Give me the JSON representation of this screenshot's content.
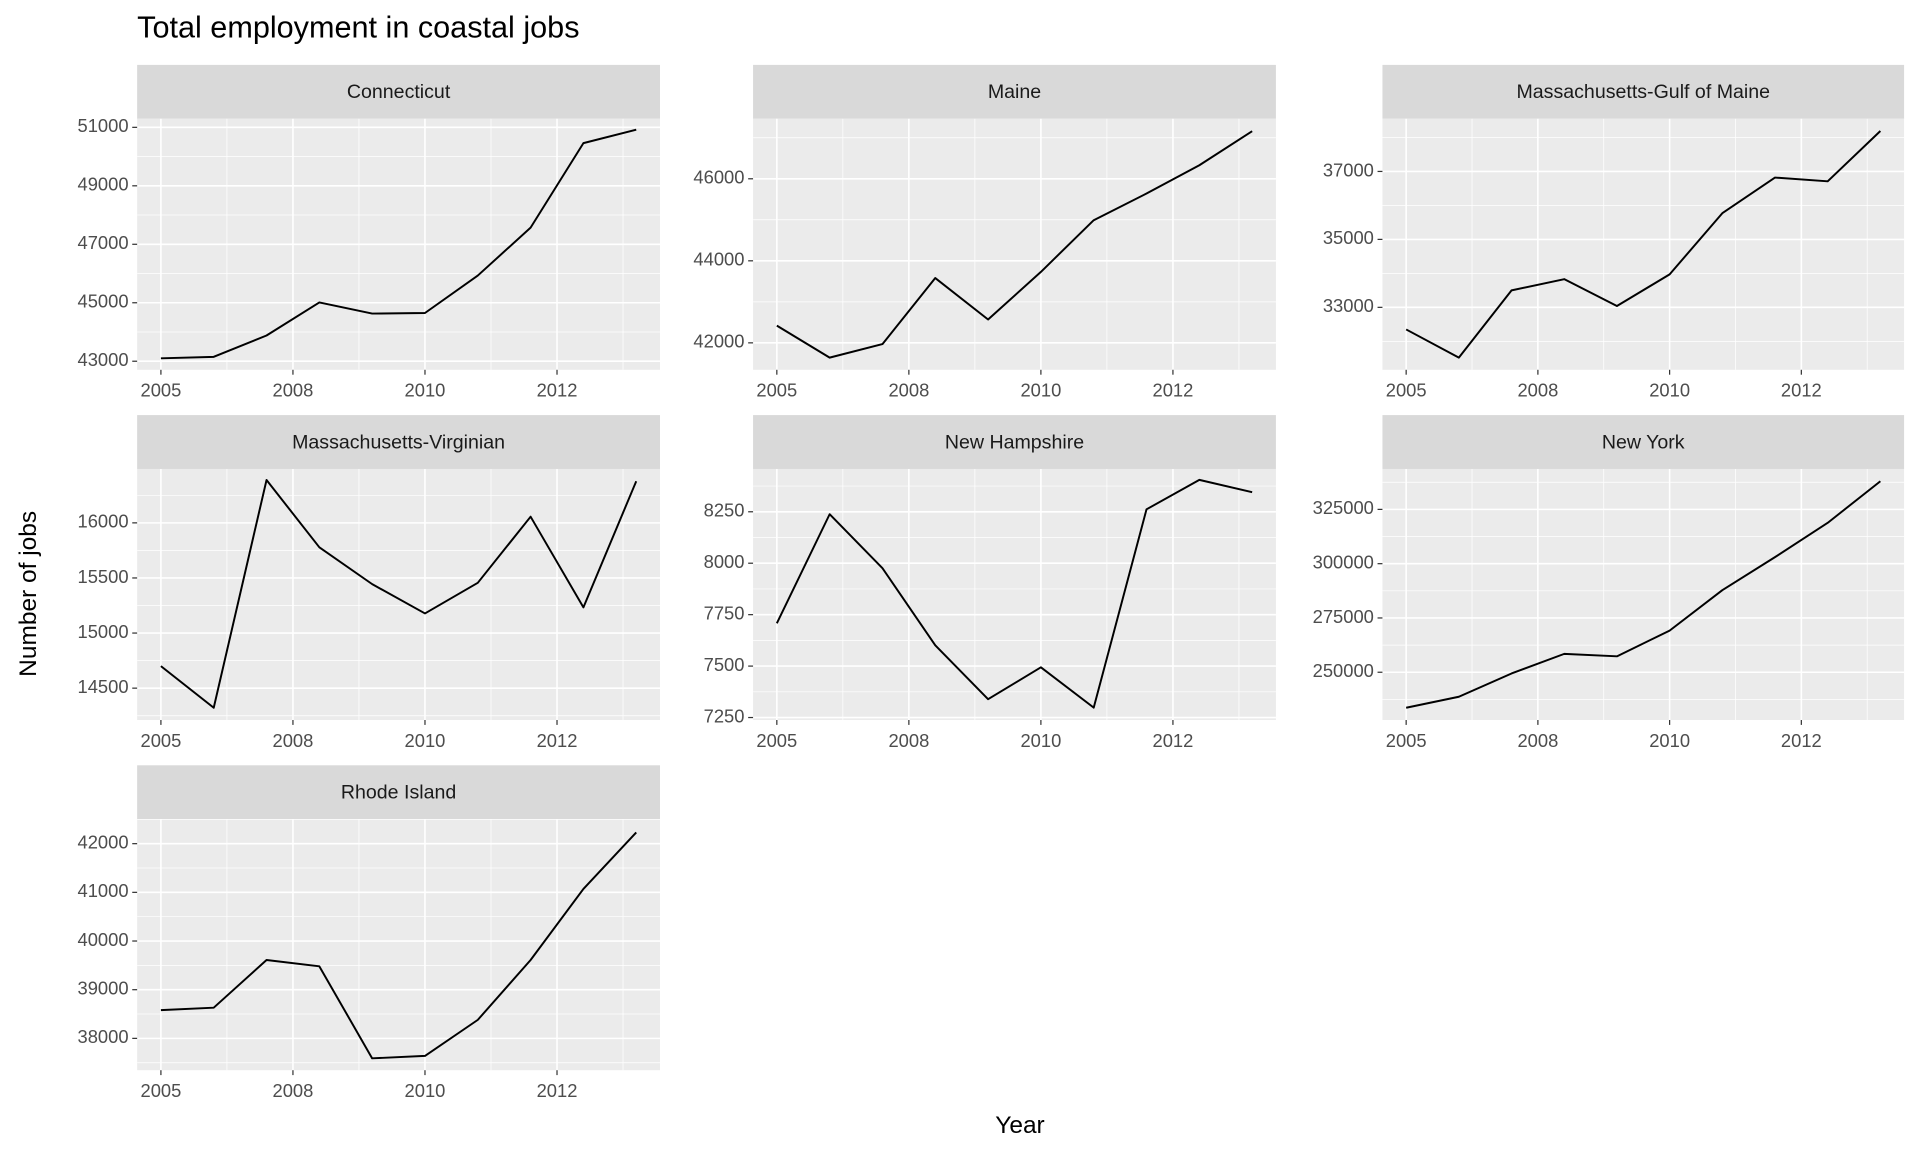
{
  "title": "Total employment in coastal jobs",
  "x_label": "Year",
  "y_label": "Number of jobs",
  "chart_data": [
    {
      "type": "line",
      "title": "Connecticut",
      "color": "#000000",
      "grid": true,
      "x": [
        2005,
        2006,
        2007,
        2008,
        2009,
        2010,
        2011,
        2012,
        2013,
        2014
      ],
      "xlim": [
        2004.55,
        2014.45
      ],
      "xticks": [
        2005,
        {
          "value": 2007.5,
          "label": "2008"
        },
        2010,
        {
          "value": 2012.5,
          "label": "2012"
        }
      ],
      "values": [
        43100,
        43150,
        43880,
        45010,
        44630,
        44650,
        45930,
        47570,
        50460,
        50920
      ],
      "ylim": [
        42707,
        51293
      ],
      "yticks": [
        43000,
        45000,
        47000,
        49000,
        51000
      ]
    },
    {
      "type": "line",
      "title": "Maine",
      "color": "#000000",
      "grid": true,
      "x": [
        2005,
        2006,
        2007,
        2008,
        2009,
        2010,
        2011,
        2012,
        2013,
        2014
      ],
      "xlim": [
        2004.55,
        2014.45
      ],
      "xticks": [
        2005,
        {
          "value": 2007.5,
          "label": "2008"
        },
        2010,
        {
          "value": 2012.5,
          "label": "2012"
        }
      ],
      "values": [
        42420,
        41640,
        41970,
        43580,
        42570,
        43730,
        44990,
        45640,
        46330,
        47160
      ],
      "ylim": [
        41343,
        47463
      ],
      "yticks": [
        42000,
        44000,
        46000
      ]
    },
    {
      "type": "line",
      "title": "Massachusetts-Gulf of Maine",
      "color": "#000000",
      "grid": true,
      "x": [
        2005,
        2006,
        2007,
        2008,
        2009,
        2010,
        2011,
        2012,
        2013,
        2014
      ],
      "xlim": [
        2004.55,
        2014.45
      ],
      "xticks": [
        2005,
        {
          "value": 2007.5,
          "label": "2008"
        },
        2010,
        {
          "value": 2012.5,
          "label": "2012"
        }
      ],
      "values": [
        32350,
        31520,
        33500,
        33830,
        33040,
        33970,
        35770,
        36820,
        36710,
        38190
      ],
      "ylim": [
        31162,
        38550
      ],
      "yticks": [
        33000,
        35000,
        37000
      ]
    },
    {
      "type": "line",
      "title": "Massachusetts-Virginian",
      "color": "#000000",
      "grid": true,
      "x": [
        2005,
        2006,
        2007,
        2008,
        2009,
        2010,
        2011,
        2012,
        2013,
        2014
      ],
      "xlim": [
        2004.55,
        2014.45
      ],
      "xticks": [
        2005,
        {
          "value": 2007.5,
          "label": "2008"
        },
        2010,
        {
          "value": 2012.5,
          "label": "2012"
        }
      ],
      "values": [
        14700,
        14322,
        16389,
        15778,
        15444,
        15178,
        15456,
        16056,
        15233,
        16378
      ],
      "ylim": [
        14211,
        16489
      ],
      "yticks": [
        14500,
        15000,
        15500,
        16000
      ]
    },
    {
      "type": "line",
      "title": "New Hampshire",
      "color": "#000000",
      "grid": true,
      "x": [
        2005,
        2006,
        2007,
        2008,
        2009,
        2010,
        2011,
        2012,
        2013,
        2014
      ],
      "xlim": [
        2004.55,
        2014.45
      ],
      "xticks": [
        2005,
        {
          "value": 2007.5,
          "label": "2008"
        },
        2010,
        {
          "value": 2012.5,
          "label": "2012"
        }
      ],
      "values": [
        7708,
        8238,
        7976,
        7601,
        7339,
        7494,
        7298,
        8262,
        8405,
        8345
      ],
      "ylim": [
        7238,
        8458
      ],
      "yticks": [
        7250,
        7500,
        7750,
        8000,
        8250
      ]
    },
    {
      "type": "line",
      "title": "New York",
      "color": "#000000",
      "grid": true,
      "x": [
        2005,
        2006,
        2007,
        2008,
        2009,
        2010,
        2011,
        2012,
        2013,
        2014
      ],
      "xlim": [
        2004.55,
        2014.45
      ],
      "xticks": [
        2005,
        {
          "value": 2007.5,
          "label": "2008"
        },
        2010,
        {
          "value": 2012.5,
          "label": "2012"
        }
      ],
      "values": [
        233640,
        238720,
        249440,
        258460,
        257330,
        269170,
        287780,
        303010,
        318800,
        337970
      ],
      "ylim": [
        228007,
        343610
      ],
      "yticks": [
        250000,
        275000,
        300000,
        325000
      ]
    },
    {
      "type": "line",
      "title": "Rhode Island",
      "color": "#000000",
      "grid": true,
      "x": [
        2005,
        2006,
        2007,
        2008,
        2009,
        2010,
        2011,
        2012,
        2013,
        2014
      ],
      "xlim": [
        2004.55,
        2014.45
      ],
      "xticks": [
        2005,
        {
          "value": 2007.5,
          "label": "2008"
        },
        2010,
        {
          "value": 2012.5,
          "label": "2012"
        }
      ],
      "values": [
        38580,
        38630,
        39610,
        39480,
        37590,
        37640,
        38380,
        39610,
        41070,
        42230
      ],
      "ylim": [
        37346,
        42503
      ],
      "yticks": [
        38000,
        39000,
        40000,
        41000,
        42000
      ]
    }
  ]
}
